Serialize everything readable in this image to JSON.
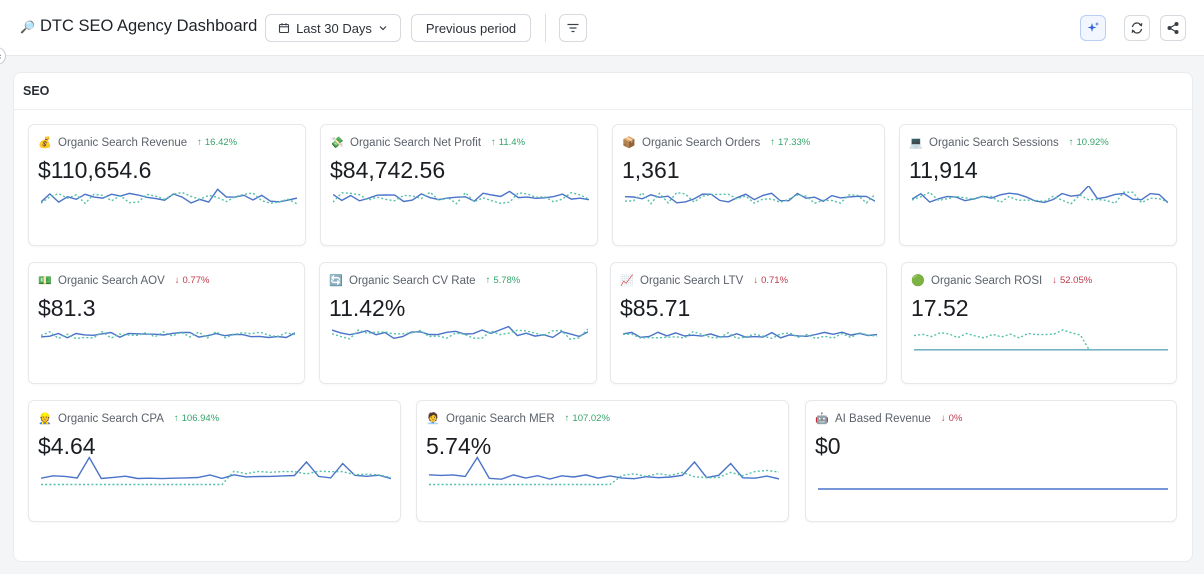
{
  "header": {
    "title": "DTC SEO Agency Dashboard",
    "title_icon": "🔎",
    "date_range": "Last 30 Days",
    "compare": "Previous period",
    "collapse_glyph": "‹"
  },
  "section": {
    "title": "SEO"
  },
  "colors": {
    "up": "#35a56a",
    "down": "#c0394a",
    "current": "#4a73c9",
    "previous": "#55c0a8"
  },
  "cards": [
    {
      "icon": "💰",
      "label": "Organic Search Revenue",
      "delta": "16.42%",
      "dir": "up",
      "value": "$110,654.6"
    },
    {
      "icon": "💸",
      "label": "Organic Search Net Profit",
      "delta": "11.4%",
      "dir": "up",
      "value": "$84,742.56"
    },
    {
      "icon": "📦",
      "label": "Organic Search Orders",
      "delta": "17.33%",
      "dir": "up",
      "value": "1,361"
    },
    {
      "icon": "💻",
      "label": "Organic Search Sessions",
      "delta": "10.92%",
      "dir": "up",
      "value": "11,914"
    },
    {
      "icon": "💵",
      "label": "Organic Search AOV",
      "delta": "0.77%",
      "dir": "down",
      "value": "$81.3"
    },
    {
      "icon": "🔄",
      "label": "Organic Search CV Rate",
      "delta": "5.78%",
      "dir": "up",
      "value": "11.42%"
    },
    {
      "icon": "📈",
      "label": "Organic Search LTV",
      "delta": "0.71%",
      "dir": "down",
      "value": "$85.71"
    },
    {
      "icon": "🟢",
      "label": "Organic Search ROSI",
      "delta": "52.05%",
      "dir": "down",
      "value": "17.52"
    },
    {
      "icon": "👷",
      "label": "Organic Search CPA",
      "delta": "106.94%",
      "dir": "up",
      "value": "$4.64"
    },
    {
      "icon": "🧑‍💼",
      "label": "Organic Search MER",
      "delta": "107.02%",
      "dir": "up",
      "value": "5.74%"
    },
    {
      "icon": "🤖",
      "label": "AI Based Revenue",
      "delta": "0%",
      "dir": "down",
      "value": "$0"
    }
  ]
}
